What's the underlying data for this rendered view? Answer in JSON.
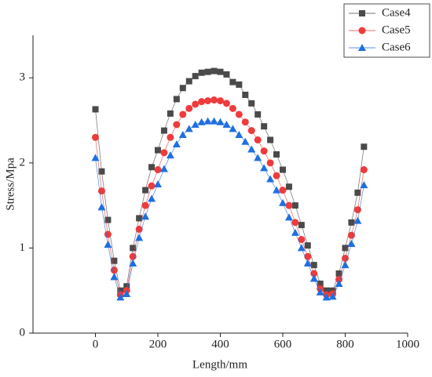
{
  "chart_data": {
    "type": "line",
    "x_label": "Length/mm",
    "y_label": "Stress/Mpa",
    "x": [
      0,
      20,
      40,
      60,
      80,
      100,
      120,
      140,
      160,
      180,
      200,
      220,
      240,
      260,
      280,
      300,
      320,
      340,
      360,
      380,
      400,
      420,
      440,
      460,
      480,
      500,
      520,
      540,
      560,
      580,
      600,
      620,
      640,
      660,
      680,
      700,
      720,
      740,
      760,
      780,
      800,
      820,
      840,
      860
    ],
    "series": [
      {
        "name": "Case4",
        "color": "#4a4a4a",
        "marker": "square",
        "values": [
          2.63,
          1.9,
          1.33,
          0.85,
          0.5,
          0.55,
          1.0,
          1.35,
          1.68,
          1.95,
          2.15,
          2.38,
          2.58,
          2.75,
          2.88,
          2.96,
          3.02,
          3.06,
          3.07,
          3.08,
          3.07,
          3.04,
          2.95,
          2.92,
          2.8,
          2.7,
          2.57,
          2.43,
          2.27,
          2.1,
          1.92,
          1.72,
          1.5,
          1.27,
          1.03,
          0.8,
          0.58,
          0.5,
          0.5,
          0.7,
          1.0,
          1.3,
          1.65,
          2.19
        ]
      },
      {
        "name": "Case5",
        "color": "#ee3b3b",
        "marker": "circle",
        "values": [
          2.3,
          1.67,
          1.16,
          0.74,
          0.45,
          0.5,
          0.9,
          1.22,
          1.5,
          1.73,
          1.92,
          2.12,
          2.3,
          2.45,
          2.57,
          2.64,
          2.69,
          2.72,
          2.73,
          2.74,
          2.73,
          2.7,
          2.64,
          2.57,
          2.48,
          2.38,
          2.27,
          2.14,
          2.0,
          1.85,
          1.68,
          1.5,
          1.3,
          1.1,
          0.9,
          0.7,
          0.52,
          0.45,
          0.46,
          0.63,
          0.88,
          1.15,
          1.45,
          1.92
        ]
      },
      {
        "name": "Case6",
        "color": "#1f6fe0",
        "marker": "triangle",
        "values": [
          2.06,
          1.48,
          1.04,
          0.66,
          0.42,
          0.46,
          0.82,
          1.12,
          1.37,
          1.58,
          1.75,
          1.93,
          2.09,
          2.22,
          2.33,
          2.4,
          2.45,
          2.48,
          2.49,
          2.49,
          2.48,
          2.45,
          2.4,
          2.33,
          2.25,
          2.16,
          2.06,
          1.94,
          1.81,
          1.68,
          1.53,
          1.36,
          1.18,
          1.0,
          0.82,
          0.64,
          0.48,
          0.42,
          0.43,
          0.58,
          0.8,
          1.05,
          1.32,
          1.74
        ]
      }
    ],
    "xlim": [
      -200,
      1000
    ],
    "xticks": [
      0,
      200,
      400,
      600,
      800,
      1000
    ],
    "ylim": [
      0,
      3.5
    ],
    "yticks": [
      0,
      1,
      2,
      3
    ],
    "legend": "top-right"
  }
}
